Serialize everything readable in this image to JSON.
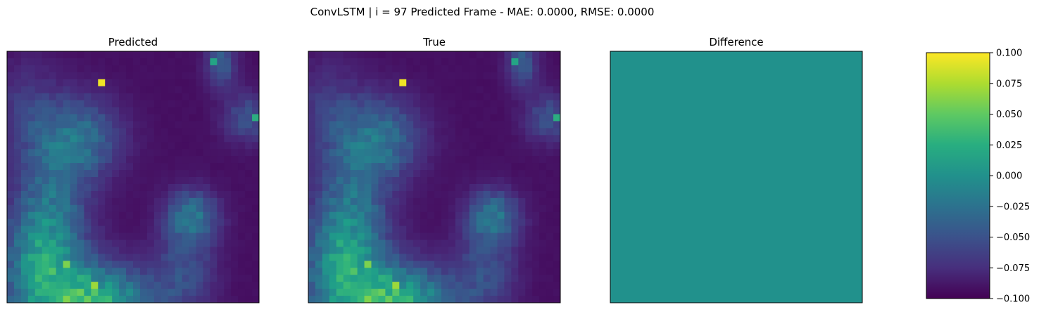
{
  "suptitle": "ConvLSTM | i = 97 Predicted Frame - MAE: 0.0000, RMSE: 0.0000",
  "colormap": "viridis",
  "chart_data": [
    {
      "type": "heatmap",
      "title": "Predicted",
      "grid_size": [
        36,
        36
      ],
      "axes_ticks": "none"
    },
    {
      "type": "heatmap",
      "title": "True",
      "grid_size": [
        36,
        36
      ],
      "axes_ticks": "none"
    },
    {
      "type": "heatmap",
      "title": "Difference",
      "grid_size": [
        36,
        36
      ],
      "uniform_value": 0.0,
      "fill_color": "#21918c",
      "axes_ticks": "none"
    },
    {
      "type": "colorbar",
      "colormap": "viridis",
      "vmin": -0.1,
      "vmax": 0.1,
      "ticks": [
        {
          "value": 0.1,
          "label": "0.100"
        },
        {
          "value": 0.075,
          "label": "0.075"
        },
        {
          "value": 0.05,
          "label": "0.050"
        },
        {
          "value": 0.025,
          "label": "0.025"
        },
        {
          "value": 0.0,
          "label": "0.000"
        },
        {
          "value": -0.025,
          "label": "−0.025"
        },
        {
          "value": -0.05,
          "label": "−0.050"
        },
        {
          "value": -0.075,
          "label": "−0.075"
        },
        {
          "value": -0.1,
          "label": "−0.100"
        }
      ]
    }
  ]
}
